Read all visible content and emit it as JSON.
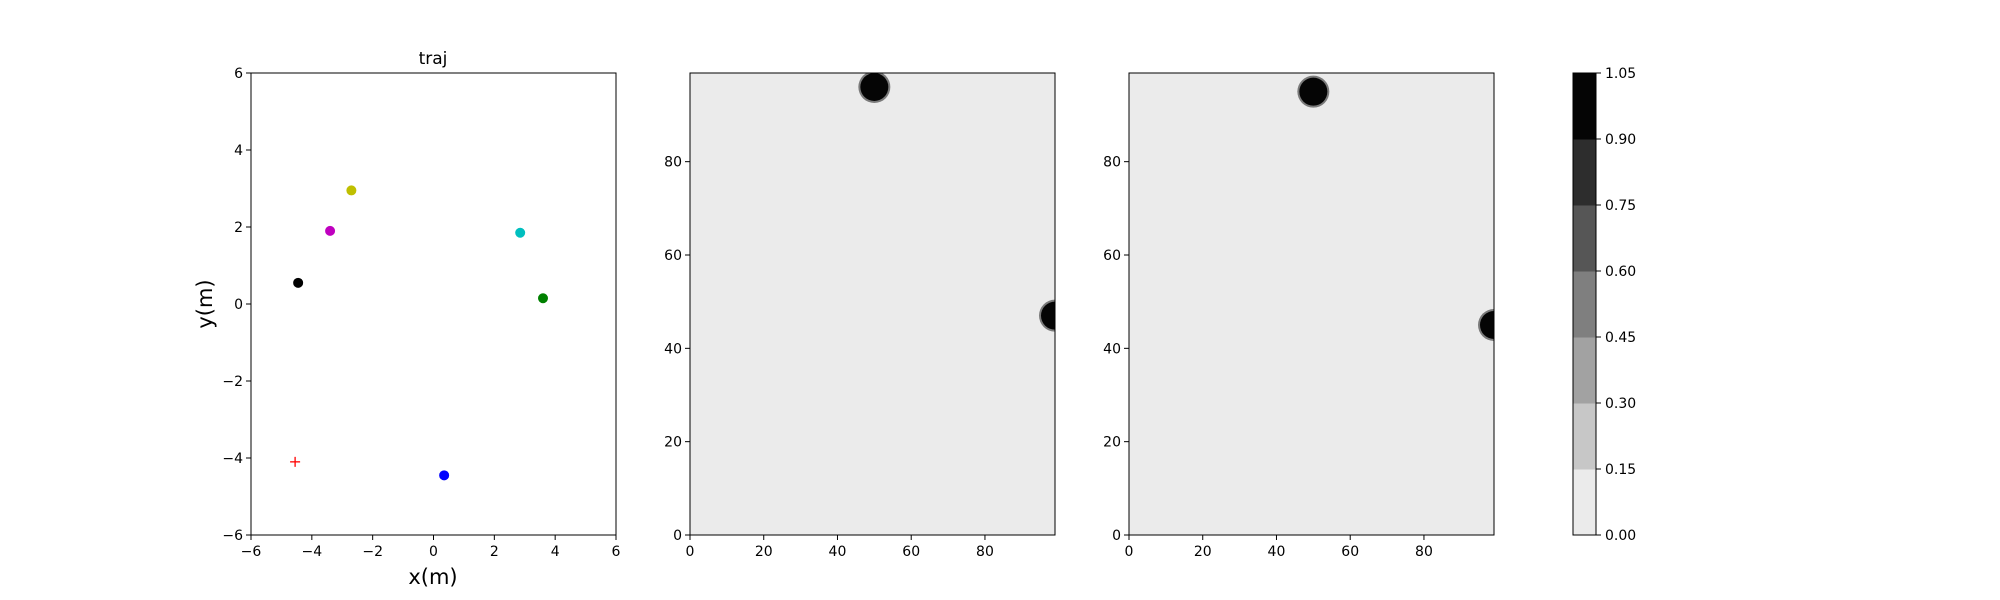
{
  "chart_data": [
    {
      "type": "scatter",
      "title": "traj",
      "xlabel": "x(m)",
      "ylabel": "y(m)",
      "xlim": [
        -6,
        6
      ],
      "ylim": [
        -6,
        6
      ],
      "xticks": [
        "−6",
        "−4",
        "−2",
        "0",
        "2",
        "4",
        "6"
      ],
      "yticks": [
        "−6",
        "−4",
        "−2",
        "0",
        "2",
        "4",
        "6"
      ],
      "grid": false,
      "points": [
        {
          "x": -2.7,
          "y": 2.95,
          "color": "#bfbf00",
          "marker": "circle"
        },
        {
          "x": -3.4,
          "y": 1.9,
          "color": "#bf00bf",
          "marker": "circle"
        },
        {
          "x": -4.45,
          "y": 0.55,
          "color": "#000000",
          "marker": "circle"
        },
        {
          "x": 2.85,
          "y": 1.85,
          "color": "#00bfbf",
          "marker": "circle"
        },
        {
          "x": 3.6,
          "y": 0.15,
          "color": "#008000",
          "marker": "circle"
        },
        {
          "x": 0.35,
          "y": -4.45,
          "color": "#0000ff",
          "marker": "circle"
        },
        {
          "x": -4.55,
          "y": -4.1,
          "color": "#ff0000",
          "marker": "plus"
        }
      ]
    },
    {
      "type": "heatmap",
      "title": "",
      "xlim": [
        0,
        99
      ],
      "ylim": [
        0,
        99
      ],
      "xticks": [
        "0",
        "20",
        "40",
        "60",
        "80"
      ],
      "yticks": [
        "0",
        "20",
        "40",
        "60",
        "80"
      ],
      "background_value": 0.05,
      "blobs": [
        {
          "x": 50,
          "y": 96,
          "value": 1.0
        },
        {
          "x": 99,
          "y": 47,
          "value": 1.0
        }
      ]
    },
    {
      "type": "heatmap",
      "title": "",
      "xlim": [
        0,
        99
      ],
      "ylim": [
        0,
        99
      ],
      "xticks": [
        "0",
        "20",
        "40",
        "60",
        "80"
      ],
      "yticks": [
        "0",
        "20",
        "40",
        "60",
        "80"
      ],
      "background_value": 0.05,
      "blobs": [
        {
          "x": 50,
          "y": 95,
          "value": 1.0
        },
        {
          "x": 99,
          "y": 45,
          "value": 1.0
        }
      ]
    }
  ],
  "colorbar": {
    "range": [
      0,
      1.05
    ],
    "tick_labels": [
      "0.00",
      "0.15",
      "0.30",
      "0.45",
      "0.60",
      "0.75",
      "0.90",
      "1.05"
    ],
    "level_colors": [
      "#ebebeb",
      "#c7c7c7",
      "#a2a2a2",
      "#7f7f7f",
      "#565656",
      "#2d2d2d",
      "#050505"
    ]
  }
}
